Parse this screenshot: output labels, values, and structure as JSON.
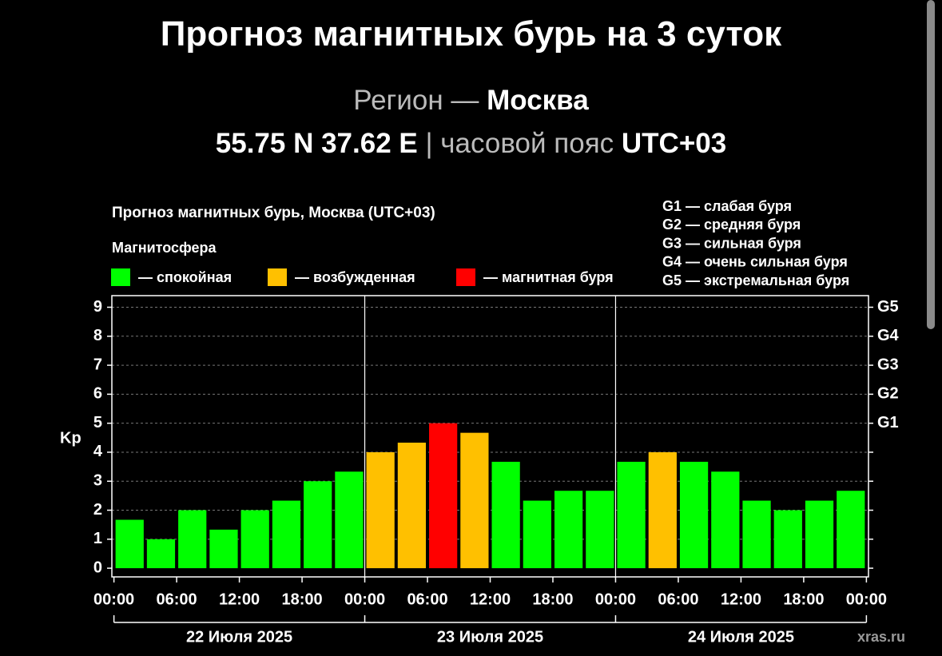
{
  "header": {
    "title": "Прогноз магнитных бурь на 3 суток",
    "region_label": "Регион —",
    "region": "Москва",
    "coords": "55.75 N 37.62 E",
    "separator": "|",
    "tz_label": "часовой пояс",
    "tz": "UTC+03"
  },
  "chart_data": {
    "type": "bar",
    "title": "Прогноз магнитных бурь, Москва (UTC+03)",
    "legend_title": "Магнитосфера",
    "ylabel": "Kp",
    "x": [
      1.5,
      4.5,
      7.5,
      10.5,
      13.5,
      16.5,
      19.5,
      22.5,
      25.5,
      28.5,
      31.5,
      34.5,
      37.5,
      40.5,
      43.5,
      46.5,
      49.5,
      52.5,
      55.5,
      58.5,
      61.5,
      64.5,
      67.5,
      70.5
    ],
    "series": [
      {
        "name": "— спокойная",
        "color": "#00ff00",
        "values": [
          1.67,
          1,
          2,
          1.33,
          2,
          2.33,
          3,
          3.33,
          null,
          null,
          null,
          null,
          3.67,
          2.33,
          2.67,
          2.67,
          3.67,
          null,
          3.67,
          3.33,
          2.33,
          2,
          2.33,
          2.67
        ]
      },
      {
        "name": "— возбужденная",
        "color": "#ffc000",
        "values": [
          null,
          null,
          null,
          null,
          null,
          null,
          null,
          null,
          4,
          4.33,
          null,
          4.67,
          null,
          null,
          null,
          null,
          null,
          4,
          null,
          null,
          null,
          null,
          null,
          null
        ]
      },
      {
        "name": "— магнитная буря",
        "color": "#ff0000",
        "values": [
          null,
          null,
          null,
          null,
          null,
          null,
          null,
          null,
          null,
          null,
          5,
          null,
          null,
          null,
          null,
          null,
          null,
          null,
          null,
          null,
          null,
          null,
          null,
          null
        ]
      }
    ],
    "xlim": [
      -0.2,
      72.2
    ],
    "xticks": [
      {
        "value": 0,
        "label": "00:00"
      },
      {
        "value": 6,
        "label": "06:00"
      },
      {
        "value": 12,
        "label": "12:00"
      },
      {
        "value": 18,
        "label": "18:00"
      },
      {
        "value": 24,
        "label": "00:00"
      },
      {
        "value": 30,
        "label": "06:00"
      },
      {
        "value": 36,
        "label": "12:00"
      },
      {
        "value": 42,
        "label": "18:00"
      },
      {
        "value": 48,
        "label": "00:00"
      },
      {
        "value": 54,
        "label": "06:00"
      },
      {
        "value": 60,
        "label": "12:00"
      },
      {
        "value": 66,
        "label": "18:00"
      },
      {
        "value": 72,
        "label": "00:00"
      }
    ],
    "days": [
      "22 Июля 2025",
      "23 Июля 2025",
      "24 Июля 2025"
    ],
    "ylim": [
      -0.3,
      9.4
    ],
    "yticks": [
      0,
      1,
      2,
      3,
      4,
      5,
      6,
      7,
      8,
      9
    ],
    "y2ticks": [
      {
        "value": 5,
        "label": "G1"
      },
      {
        "value": 6,
        "label": "G2"
      },
      {
        "value": 7,
        "label": "G3"
      },
      {
        "value": 8,
        "label": "G4"
      },
      {
        "value": 9,
        "label": "G5"
      }
    ],
    "grid": true,
    "storm_levels": [
      "G1 — слабая буря",
      "G2 — средняя буря",
      "G3 — сильная буря",
      "G4 — очень сильная буря",
      "G5 — экстремальная буря"
    ],
    "watermark": "xras.ru"
  }
}
